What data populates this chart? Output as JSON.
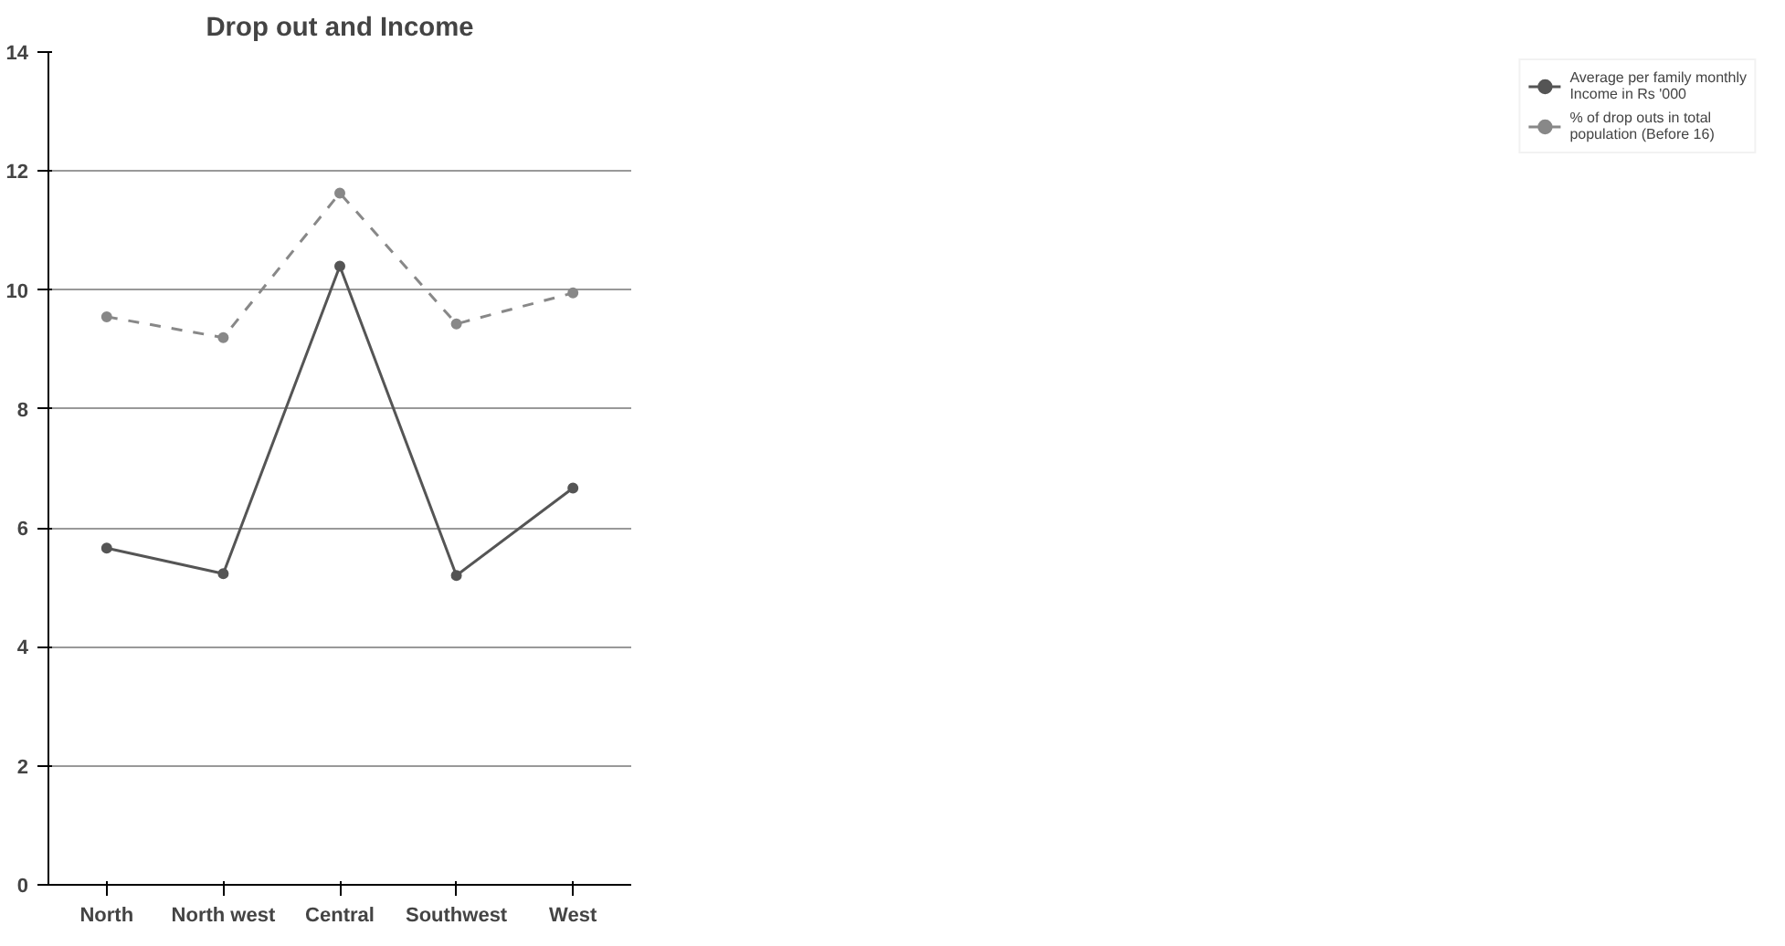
{
  "chart_data": {
    "type": "line",
    "title": "Drop out and Income",
    "categories": [
      "North",
      "North west",
      "Central",
      "Southwest",
      "West"
    ],
    "series": [
      {
        "name": "Average per family monthly Income in Rs '000",
        "color": "#555555",
        "values": [
          5.66,
          5.23,
          10.4,
          5.2,
          6.67
        ],
        "line_style": "solid"
      },
      {
        "name": "% of drop outs in total population (Before 16)",
        "color": "#888888",
        "values": [
          9.55,
          9.2,
          11.63,
          9.43,
          9.95
        ],
        "line_style": "dashed"
      }
    ],
    "ylim": [
      0,
      14
    ],
    "yticks": [
      0,
      2,
      4,
      6,
      8,
      10,
      12,
      14
    ],
    "grid": "y",
    "legend": "right",
    "marker": "circle"
  }
}
